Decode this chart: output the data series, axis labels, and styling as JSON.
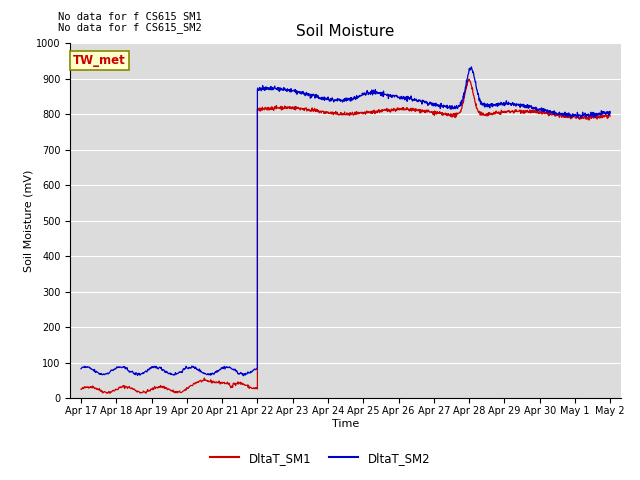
{
  "title": "Soil Moisture",
  "xlabel": "Time",
  "ylabel": "Soil Moisture (mV)",
  "ylim": [
    0,
    1000
  ],
  "yticks": [
    0,
    100,
    200,
    300,
    400,
    500,
    600,
    700,
    800,
    900,
    1000
  ],
  "bg_color": "#dcdcdc",
  "fig_color": "#ffffff",
  "no_data_text1": "No data for f CS615 SM1",
  "no_data_text2": "No data for f CS615_SM2",
  "tw_met_label": "TW_met",
  "legend_sm1": "DltaT_SM1",
  "legend_sm2": "DltaT_SM2",
  "line_color_sm1": "#cc0000",
  "line_color_sm2": "#0000cc",
  "title_fontsize": 11,
  "axis_fontsize": 8,
  "tick_fontsize": 7,
  "annot_fontsize": 7.5
}
